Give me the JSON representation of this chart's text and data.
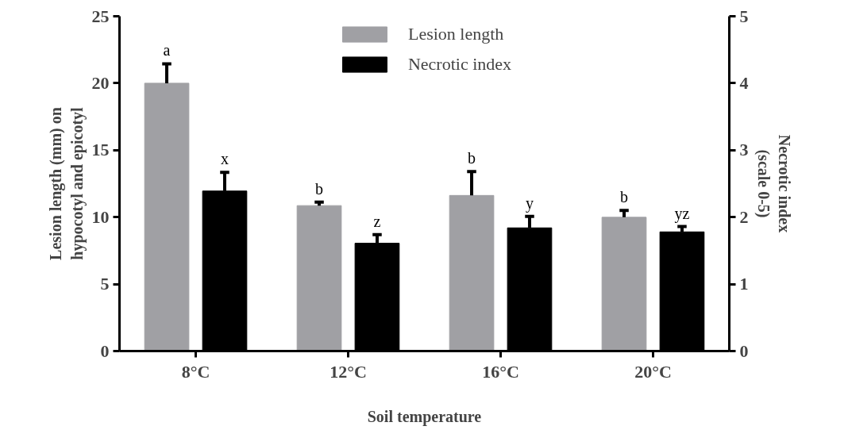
{
  "chart_data": {
    "type": "bar",
    "categories": [
      "8°C",
      "12°C",
      "16°C",
      "20°C"
    ],
    "xlabel": "Soil temperature",
    "ylabel": "Lesion length (mm) on\nhypocotyl and epicotyl",
    "y2label": "Necrotic index\n(scale 0-5)",
    "series": [
      {
        "name": "Lesion length",
        "color": "#a0a0a4",
        "values": [
          20,
          10.86,
          11.62,
          9.99
        ],
        "errors": [
          [
            20,
            21.45
          ],
          [
            10.86,
            11.12
          ],
          [
            11.62,
            13.4
          ],
          [
            9.99,
            10.5
          ]
        ]
      },
      {
        "name": "Necrotic index",
        "color": "#000000",
        "axis": "y2",
        "values": [
          2.39,
          1.61,
          1.84,
          1.78
        ],
        "errors": [
          [
            2.39,
            2.67
          ],
          [
            1.61,
            1.74
          ],
          [
            1.84,
            2.01
          ],
          [
            1.78,
            1.86
          ]
        ]
      }
    ],
    "ylim": [
      0,
      25
    ],
    "yticks": [
      0,
      5,
      10,
      15,
      20,
      25
    ],
    "y2lim": [
      0,
      5
    ],
    "y2ticks": [
      0,
      1,
      2,
      3,
      4,
      5
    ],
    "annotations": [
      "a",
      "x",
      "b",
      "z",
      "b",
      "y",
      "b",
      "yz"
    ],
    "legend": "top",
    "grid": false
  }
}
